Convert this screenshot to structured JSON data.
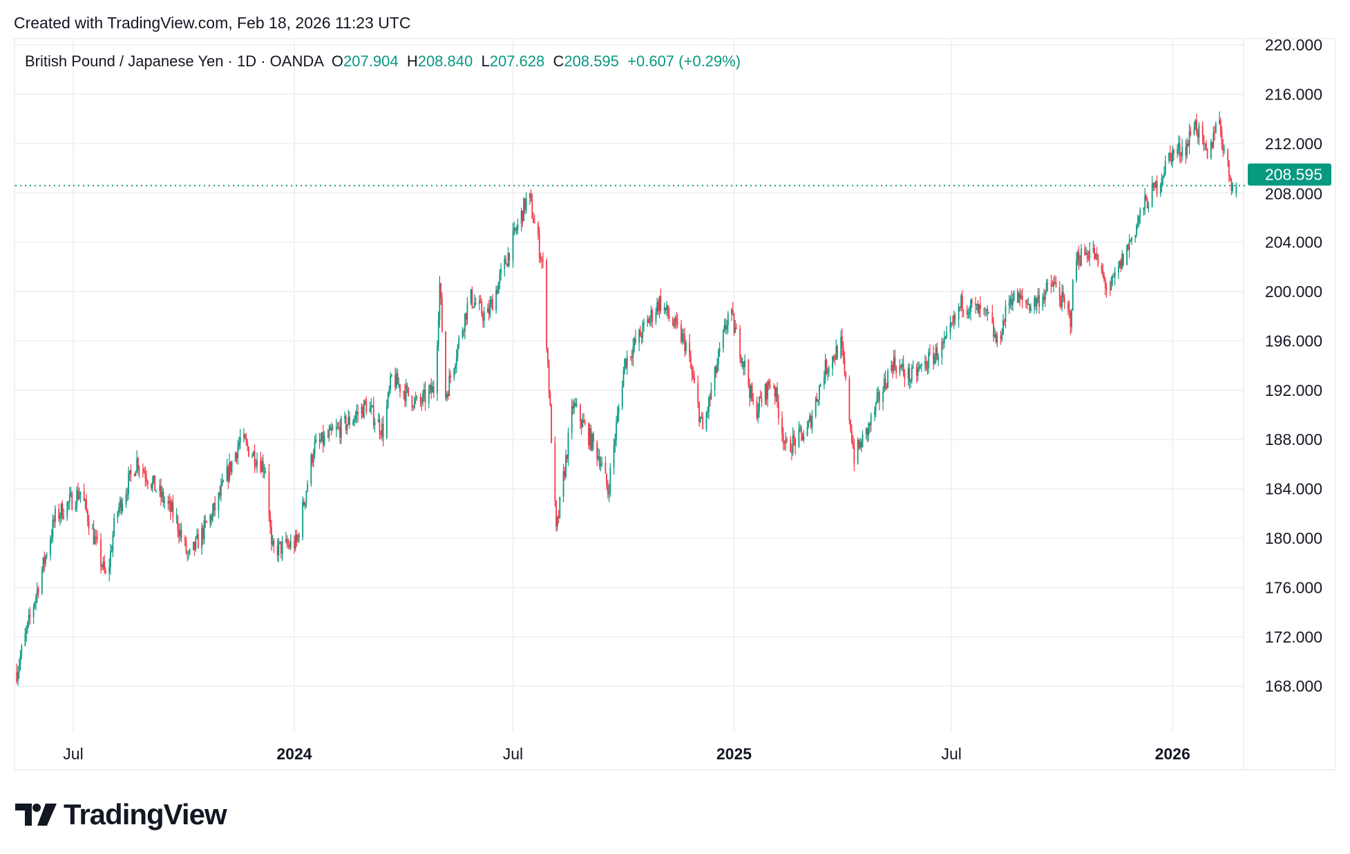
{
  "header": {
    "created": "Created with TradingView.com, Feb 18, 2026 11:23 UTC"
  },
  "legend": {
    "symbol": "British Pound / Japanese Yen · 1D · OANDA",
    "o_label": "O",
    "o": "207.904",
    "h_label": "H",
    "h": "208.840",
    "l_label": "L",
    "l": "207.628",
    "c_label": "C",
    "c": "208.595",
    "change": "+0.607 (+0.29%)"
  },
  "colors": {
    "up": "#089981",
    "down": "#f23645",
    "grid": "#f0f1f4",
    "text": "#131722"
  },
  "chart_data": {
    "type": "candlestick",
    "title": "British Pound / Japanese Yen · 1D · OANDA",
    "start_date": "2023-05-15",
    "ylim": [
      164,
      221
    ],
    "y_ticks": [
      "220.000",
      "216.000",
      "212.000",
      "208.000",
      "204.000",
      "200.000",
      "196.000",
      "192.000",
      "188.000",
      "184.000",
      "180.000",
      "176.000",
      "172.000",
      "168.000"
    ],
    "x_ticks": [
      {
        "label": "Jul",
        "day": 47,
        "bold": false
      },
      {
        "label": "2024",
        "day": 231,
        "bold": true
      },
      {
        "label": "Jul",
        "day": 413,
        "bold": false
      },
      {
        "label": "2025",
        "day": 597,
        "bold": true
      },
      {
        "label": "Jul",
        "day": 778,
        "bold": false
      },
      {
        "label": "2026",
        "day": 962,
        "bold": true
      }
    ],
    "last_price": "208.595",
    "last_candle": {
      "open": 207.904,
      "high": 208.84,
      "low": 207.628,
      "close": 208.595
    },
    "close_path_day_price": [
      [
        0,
        169.2
      ],
      [
        32,
        181.7
      ],
      [
        53,
        183.8
      ],
      [
        75,
        176.5
      ],
      [
        82,
        181.7
      ],
      [
        100,
        186.3
      ],
      [
        132,
        181.7
      ],
      [
        143,
        178.3
      ],
      [
        165,
        182.4
      ],
      [
        186,
        188
      ],
      [
        208,
        185.6
      ],
      [
        212,
        179
      ],
      [
        233,
        179.6
      ],
      [
        247,
        187.3
      ],
      [
        276,
        189.4
      ],
      [
        291,
        190.8
      ],
      [
        305,
        188.7
      ],
      [
        312,
        193
      ],
      [
        334,
        190.8
      ],
      [
        348,
        192.2
      ],
      [
        352,
        200.6
      ],
      [
        357,
        191.5
      ],
      [
        377,
        199.6
      ],
      [
        391,
        197.8
      ],
      [
        420,
        206.2
      ],
      [
        426,
        207.9
      ],
      [
        438,
        202
      ],
      [
        449,
        180.4
      ],
      [
        463,
        190.8
      ],
      [
        485,
        186.6
      ],
      [
        492,
        183.8
      ],
      [
        506,
        194.3
      ],
      [
        535,
        199.2
      ],
      [
        557,
        195.7
      ],
      [
        571,
        188.7
      ],
      [
        593,
        198.5
      ],
      [
        607,
        193.6
      ],
      [
        614,
        190.1
      ],
      [
        629,
        193
      ],
      [
        640,
        187.3
      ],
      [
        658,
        188.7
      ],
      [
        672,
        193.6
      ],
      [
        686,
        195.7
      ],
      [
        697,
        186.6
      ],
      [
        708,
        188.7
      ],
      [
        729,
        194.3
      ],
      [
        744,
        193
      ],
      [
        773,
        195.7
      ],
      [
        787,
        199.2
      ],
      [
        809,
        197.8
      ],
      [
        816,
        195.7
      ],
      [
        827,
        199.6
      ],
      [
        845,
        198.9
      ],
      [
        863,
        200.6
      ],
      [
        877,
        197.8
      ],
      [
        881,
        202.7
      ],
      [
        895,
        203.4
      ],
      [
        909,
        199.9
      ],
      [
        924,
        203.4
      ],
      [
        938,
        206.9
      ],
      [
        949,
        208.6
      ],
      [
        960,
        211.1
      ],
      [
        974,
        211.8
      ],
      [
        980,
        213.9
      ],
      [
        992,
        210.4
      ],
      [
        999,
        214.6
      ],
      [
        1007,
        210.4
      ],
      [
        1012,
        208.6
      ],
      [
        1015,
        208.6
      ]
    ]
  },
  "logo": {
    "text": "TradingView"
  }
}
